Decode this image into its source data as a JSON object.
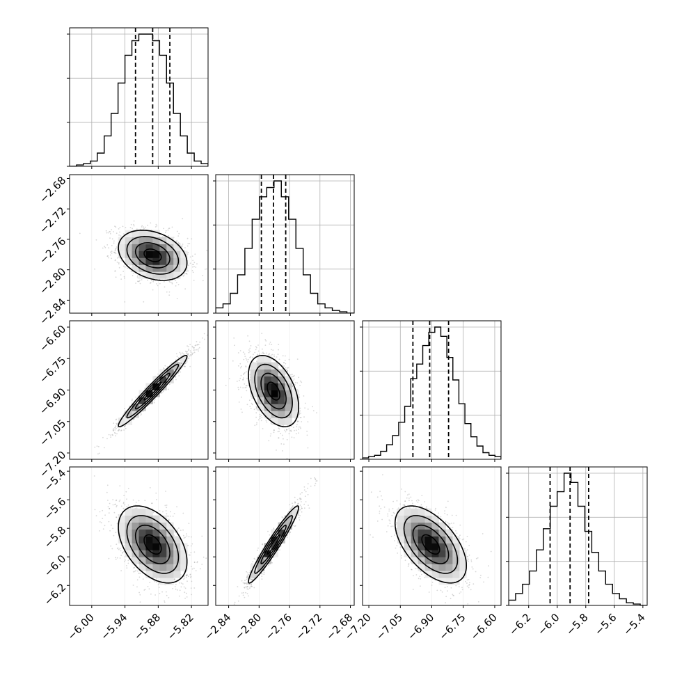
{
  "chart_data": {
    "type": "corner",
    "parameters": [
      {
        "range": [
          -6.04,
          -5.79
        ],
        "ticks": [
          "−6.00",
          "−5.94",
          "−5.88",
          "−5.82"
        ],
        "tick_values": [
          -6.0,
          -5.94,
          -5.88,
          -5.82
        ],
        "quantiles": [
          -5.921,
          -5.89,
          -5.859
        ],
        "histogram": {
          "edges_range": [
            -6.04,
            -5.79
          ],
          "counts": [
            0,
            1,
            2,
            4,
            10,
            23,
            40,
            63,
            84,
            95,
            100,
            100,
            95,
            84,
            63,
            40,
            23,
            10,
            4,
            2
          ]
        }
      },
      {
        "range": [
          -2.857,
          -2.675
        ],
        "ticks": [
          "−2.84",
          "−2.80",
          "−2.76",
          "−2.72",
          "−2.68"
        ],
        "tick_values": [
          -2.84,
          -2.8,
          -2.76,
          -2.72,
          -2.68
        ],
        "quantiles": [
          -2.797,
          -2.781,
          -2.765
        ],
        "histogram": {
          "edges_range": [
            -2.857,
            -2.675
          ],
          "counts": [
            4,
            7,
            15,
            29,
            49,
            71,
            88,
            95,
            100,
            88,
            71,
            49,
            29,
            15,
            7,
            4,
            2,
            1,
            0
          ]
        }
      },
      {
        "range": [
          -7.23,
          -6.57
        ],
        "ticks": [
          "−7.20",
          "−7.05",
          "−6.90",
          "−6.75",
          "−6.60"
        ],
        "tick_values": [
          -7.2,
          -7.05,
          -6.9,
          -6.75,
          -6.6
        ],
        "quantiles": [
          -6.99,
          -6.91,
          -6.82
        ],
        "histogram": {
          "edges_range": [
            -7.23,
            -6.57
          ],
          "counts": [
            1,
            2,
            3,
            6,
            11,
            18,
            28,
            40,
            61,
            72,
            86,
            96,
            100,
            93,
            77,
            60,
            42,
            27,
            17,
            10,
            5,
            3,
            2
          ]
        }
      },
      {
        "range": [
          -6.34,
          -5.37
        ],
        "ticks": [
          "−6.2",
          "−6.0",
          "−5.8",
          "−5.6",
          "−5.4"
        ],
        "tick_values": [
          -6.2,
          -6.0,
          -5.8,
          -5.6,
          -5.4
        ],
        "quantiles": [
          -6.05,
          -5.91,
          -5.78
        ],
        "histogram": {
          "edges_range": [
            -6.34,
            -5.37
          ],
          "counts": [
            4,
            9,
            16,
            26,
            42,
            58,
            75,
            86,
            100,
            93,
            75,
            56,
            40,
            26,
            16,
            9,
            5,
            2,
            1,
            0
          ]
        }
      }
    ],
    "correlations": [
      [
        1.0,
        -0.3,
        0.97,
        -0.45
      ],
      [
        -0.3,
        1.0,
        -0.45,
        0.96
      ],
      [
        0.97,
        -0.45,
        1.0,
        -0.55
      ],
      [
        -0.45,
        0.96,
        -0.55,
        1.0
      ]
    ],
    "means": [
      -5.89,
      -2.781,
      -6.905,
      -5.913
    ],
    "sigmas": [
      0.031,
      0.0165,
      0.085,
      0.135
    ],
    "contour_levels_sigma": [
      0.5,
      1.0,
      1.5,
      2.0
    ],
    "grid": true,
    "colors": {
      "density_low": "#ffffff",
      "density_high": "#000000",
      "points": "#8c8c8c",
      "line": "#000000",
      "grid": "#b0b0b0"
    }
  }
}
